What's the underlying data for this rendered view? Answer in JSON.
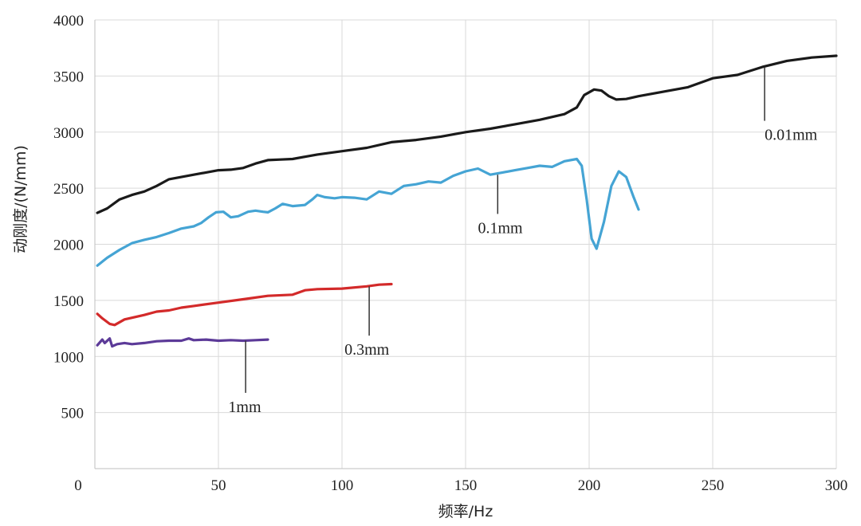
{
  "chart_data": {
    "type": "line",
    "title": "",
    "xlabel": "频率/Hz",
    "ylabel": "动刚度/(N/mm)",
    "xlim": [
      0,
      300
    ],
    "ylim": [
      0,
      4000
    ],
    "x_ticks": [
      0,
      50,
      100,
      150,
      200,
      250,
      300
    ],
    "y_ticks": [
      500,
      1000,
      1500,
      2000,
      2500,
      3000,
      3500,
      4000
    ],
    "grid": true,
    "series": [
      {
        "name": "0.01mm",
        "color": "#1a1a1a",
        "label_at": [
          271,
          2930
        ],
        "leader_from": [
          271,
          3580
        ],
        "points": [
          [
            1,
            2280
          ],
          [
            5,
            2320
          ],
          [
            10,
            2400
          ],
          [
            15,
            2440
          ],
          [
            20,
            2470
          ],
          [
            25,
            2520
          ],
          [
            30,
            2580
          ],
          [
            35,
            2600
          ],
          [
            40,
            2620
          ],
          [
            45,
            2640
          ],
          [
            50,
            2660
          ],
          [
            55,
            2665
          ],
          [
            60,
            2680
          ],
          [
            65,
            2720
          ],
          [
            70,
            2750
          ],
          [
            75,
            2755
          ],
          [
            80,
            2760
          ],
          [
            85,
            2780
          ],
          [
            90,
            2800
          ],
          [
            95,
            2815
          ],
          [
            100,
            2830
          ],
          [
            110,
            2860
          ],
          [
            120,
            2910
          ],
          [
            130,
            2930
          ],
          [
            140,
            2960
          ],
          [
            150,
            3000
          ],
          [
            160,
            3030
          ],
          [
            170,
            3070
          ],
          [
            180,
            3110
          ],
          [
            190,
            3160
          ],
          [
            195,
            3220
          ],
          [
            198,
            3330
          ],
          [
            202,
            3380
          ],
          [
            205,
            3370
          ],
          [
            208,
            3320
          ],
          [
            211,
            3290
          ],
          [
            215,
            3295
          ],
          [
            220,
            3320
          ],
          [
            230,
            3360
          ],
          [
            240,
            3400
          ],
          [
            250,
            3480
          ],
          [
            255,
            3495
          ],
          [
            260,
            3510
          ],
          [
            270,
            3580
          ],
          [
            280,
            3635
          ],
          [
            290,
            3665
          ],
          [
            300,
            3680
          ]
        ]
      },
      {
        "name": "0.1mm",
        "color": "#45a4d4",
        "label_at": [
          155,
          2100
        ],
        "leader_from": [
          163,
          2620
        ],
        "points": [
          [
            1,
            1810
          ],
          [
            5,
            1880
          ],
          [
            10,
            1950
          ],
          [
            15,
            2010
          ],
          [
            20,
            2040
          ],
          [
            25,
            2065
          ],
          [
            30,
            2100
          ],
          [
            35,
            2140
          ],
          [
            40,
            2160
          ],
          [
            43,
            2190
          ],
          [
            46,
            2240
          ],
          [
            49,
            2285
          ],
          [
            52,
            2290
          ],
          [
            55,
            2240
          ],
          [
            58,
            2250
          ],
          [
            62,
            2290
          ],
          [
            65,
            2300
          ],
          [
            68,
            2290
          ],
          [
            70,
            2285
          ],
          [
            73,
            2320
          ],
          [
            76,
            2360
          ],
          [
            80,
            2340
          ],
          [
            85,
            2350
          ],
          [
            88,
            2400
          ],
          [
            90,
            2440
          ],
          [
            93,
            2420
          ],
          [
            97,
            2410
          ],
          [
            100,
            2420
          ],
          [
            105,
            2415
          ],
          [
            110,
            2400
          ],
          [
            115,
            2470
          ],
          [
            120,
            2450
          ],
          [
            125,
            2520
          ],
          [
            130,
            2535
          ],
          [
            135,
            2560
          ],
          [
            140,
            2550
          ],
          [
            145,
            2610
          ],
          [
            150,
            2650
          ],
          [
            155,
            2675
          ],
          [
            160,
            2620
          ],
          [
            165,
            2640
          ],
          [
            170,
            2660
          ],
          [
            175,
            2680
          ],
          [
            180,
            2700
          ],
          [
            185,
            2690
          ],
          [
            190,
            2740
          ],
          [
            195,
            2760
          ],
          [
            197,
            2700
          ],
          [
            199,
            2400
          ],
          [
            201,
            2050
          ],
          [
            203,
            1960
          ],
          [
            206,
            2200
          ],
          [
            209,
            2520
          ],
          [
            212,
            2650
          ],
          [
            215,
            2600
          ],
          [
            218,
            2420
          ],
          [
            220,
            2310
          ]
        ]
      },
      {
        "name": "0.3mm",
        "color": "#d32a2a",
        "label_at": [
          101,
          1015
        ],
        "leader_from": [
          111,
          1625
        ],
        "points": [
          [
            1,
            1380
          ],
          [
            3,
            1340
          ],
          [
            6,
            1290
          ],
          [
            8,
            1280
          ],
          [
            12,
            1330
          ],
          [
            20,
            1370
          ],
          [
            25,
            1400
          ],
          [
            30,
            1410
          ],
          [
            35,
            1435
          ],
          [
            40,
            1450
          ],
          [
            50,
            1480
          ],
          [
            60,
            1510
          ],
          [
            70,
            1540
          ],
          [
            80,
            1550
          ],
          [
            85,
            1590
          ],
          [
            90,
            1600
          ],
          [
            100,
            1605
          ],
          [
            110,
            1625
          ],
          [
            115,
            1640
          ],
          [
            120,
            1645
          ]
        ]
      },
      {
        "name": "1mm",
        "color": "#5c3a98",
        "label_at": [
          54,
          505
        ],
        "leader_from": [
          61,
          1140
        ],
        "points": [
          [
            1,
            1100
          ],
          [
            3,
            1150
          ],
          [
            4,
            1120
          ],
          [
            6,
            1160
          ],
          [
            7,
            1090
          ],
          [
            9,
            1110
          ],
          [
            12,
            1120
          ],
          [
            15,
            1110
          ],
          [
            20,
            1120
          ],
          [
            25,
            1135
          ],
          [
            30,
            1140
          ],
          [
            35,
            1140
          ],
          [
            38,
            1160
          ],
          [
            40,
            1145
          ],
          [
            45,
            1150
          ],
          [
            50,
            1140
          ],
          [
            55,
            1145
          ],
          [
            60,
            1140
          ],
          [
            65,
            1145
          ],
          [
            70,
            1150
          ]
        ]
      }
    ]
  }
}
